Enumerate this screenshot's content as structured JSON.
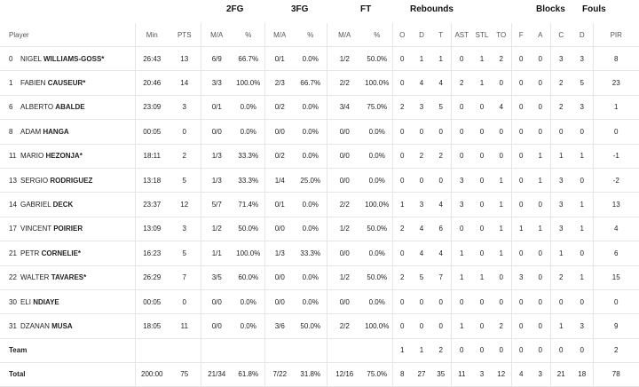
{
  "groups": {
    "fg2": "2FG",
    "fg3": "3FG",
    "ft": "FT",
    "rebounds": "Rebounds",
    "blocks": "Blocks",
    "fouls": "Fouls"
  },
  "headers": {
    "player": "Player",
    "min": "Min",
    "pts": "PTS",
    "fg2_ma": "M/A",
    "fg2_pct": "%",
    "fg3_ma": "M/A",
    "fg3_pct": "%",
    "ft_ma": "M/A",
    "ft_pct": "%",
    "reb_o": "O",
    "reb_d": "D",
    "reb_t": "T",
    "ast": "AST",
    "stl": "STL",
    "to": "TO",
    "blk_f": "F",
    "blk_a": "A",
    "foul_c": "C",
    "foul_d": "D",
    "pir": "PIR"
  },
  "players": [
    {
      "num": "0",
      "first": "NIGEL",
      "last": "WILLIAMS-GOSS*",
      "min": "26:43",
      "pts": "13",
      "fg2_ma": "6/9",
      "fg2_pct": "66.7%",
      "fg3_ma": "0/1",
      "fg3_pct": "0.0%",
      "ft_ma": "1/2",
      "ft_pct": "50.0%",
      "o": "0",
      "d": "1",
      "t": "1",
      "ast": "0",
      "stl": "1",
      "to": "2",
      "bf": "0",
      "ba": "0",
      "fc": "3",
      "fd": "3",
      "pir": "8"
    },
    {
      "num": "1",
      "first": "FABIEN",
      "last": "CAUSEUR*",
      "min": "20:46",
      "pts": "14",
      "fg2_ma": "3/3",
      "fg2_pct": "100.0%",
      "fg3_ma": "2/3",
      "fg3_pct": "66.7%",
      "ft_ma": "2/2",
      "ft_pct": "100.0%",
      "o": "0",
      "d": "4",
      "t": "4",
      "ast": "2",
      "stl": "1",
      "to": "0",
      "bf": "0",
      "ba": "0",
      "fc": "2",
      "fd": "5",
      "pir": "23"
    },
    {
      "num": "6",
      "first": "ALBERTO",
      "last": "ABALDE",
      "min": "23:09",
      "pts": "3",
      "fg2_ma": "0/1",
      "fg2_pct": "0.0%",
      "fg3_ma": "0/2",
      "fg3_pct": "0.0%",
      "ft_ma": "3/4",
      "ft_pct": "75.0%",
      "o": "2",
      "d": "3",
      "t": "5",
      "ast": "0",
      "stl": "0",
      "to": "4",
      "bf": "0",
      "ba": "0",
      "fc": "2",
      "fd": "3",
      "pir": "1"
    },
    {
      "num": "8",
      "first": "ADAM",
      "last": "HANGA",
      "min": "00:05",
      "pts": "0",
      "fg2_ma": "0/0",
      "fg2_pct": "0.0%",
      "fg3_ma": "0/0",
      "fg3_pct": "0.0%",
      "ft_ma": "0/0",
      "ft_pct": "0.0%",
      "o": "0",
      "d": "0",
      "t": "0",
      "ast": "0",
      "stl": "0",
      "to": "0",
      "bf": "0",
      "ba": "0",
      "fc": "0",
      "fd": "0",
      "pir": "0"
    },
    {
      "num": "11",
      "first": "MARIO",
      "last": "HEZONJA*",
      "min": "18:11",
      "pts": "2",
      "fg2_ma": "1/3",
      "fg2_pct": "33.3%",
      "fg3_ma": "0/2",
      "fg3_pct": "0.0%",
      "ft_ma": "0/0",
      "ft_pct": "0.0%",
      "o": "0",
      "d": "2",
      "t": "2",
      "ast": "0",
      "stl": "0",
      "to": "0",
      "bf": "0",
      "ba": "1",
      "fc": "1",
      "fd": "1",
      "pir": "-1"
    },
    {
      "num": "13",
      "first": "SERGIO",
      "last": "RODRIGUEZ",
      "min": "13:18",
      "pts": "5",
      "fg2_ma": "1/3",
      "fg2_pct": "33.3%",
      "fg3_ma": "1/4",
      "fg3_pct": "25.0%",
      "ft_ma": "0/0",
      "ft_pct": "0.0%",
      "o": "0",
      "d": "0",
      "t": "0",
      "ast": "3",
      "stl": "0",
      "to": "1",
      "bf": "0",
      "ba": "1",
      "fc": "3",
      "fd": "0",
      "pir": "-2"
    },
    {
      "num": "14",
      "first": "GABRIEL",
      "last": "DECK",
      "min": "23:37",
      "pts": "12",
      "fg2_ma": "5/7",
      "fg2_pct": "71.4%",
      "fg3_ma": "0/1",
      "fg3_pct": "0.0%",
      "ft_ma": "2/2",
      "ft_pct": "100.0%",
      "o": "1",
      "d": "3",
      "t": "4",
      "ast": "3",
      "stl": "0",
      "to": "1",
      "bf": "0",
      "ba": "0",
      "fc": "3",
      "fd": "1",
      "pir": "13"
    },
    {
      "num": "17",
      "first": "VINCENT",
      "last": "POIRIER",
      "min": "13:09",
      "pts": "3",
      "fg2_ma": "1/2",
      "fg2_pct": "50.0%",
      "fg3_ma": "0/0",
      "fg3_pct": "0.0%",
      "ft_ma": "1/2",
      "ft_pct": "50.0%",
      "o": "2",
      "d": "4",
      "t": "6",
      "ast": "0",
      "stl": "0",
      "to": "1",
      "bf": "1",
      "ba": "1",
      "fc": "3",
      "fd": "1",
      "pir": "4"
    },
    {
      "num": "21",
      "first": "PETR",
      "last": "CORNELIE*",
      "min": "16:23",
      "pts": "5",
      "fg2_ma": "1/1",
      "fg2_pct": "100.0%",
      "fg3_ma": "1/3",
      "fg3_pct": "33.3%",
      "ft_ma": "0/0",
      "ft_pct": "0.0%",
      "o": "0",
      "d": "4",
      "t": "4",
      "ast": "1",
      "stl": "0",
      "to": "1",
      "bf": "0",
      "ba": "0",
      "fc": "1",
      "fd": "0",
      "pir": "6"
    },
    {
      "num": "22",
      "first": "WALTER",
      "last": "TAVARES*",
      "min": "26:29",
      "pts": "7",
      "fg2_ma": "3/5",
      "fg2_pct": "60.0%",
      "fg3_ma": "0/0",
      "fg3_pct": "0.0%",
      "ft_ma": "1/2",
      "ft_pct": "50.0%",
      "o": "2",
      "d": "5",
      "t": "7",
      "ast": "1",
      "stl": "1",
      "to": "0",
      "bf": "3",
      "ba": "0",
      "fc": "2",
      "fd": "1",
      "pir": "15"
    },
    {
      "num": "30",
      "first": "ELI",
      "last": "NDIAYE",
      "min": "00:05",
      "pts": "0",
      "fg2_ma": "0/0",
      "fg2_pct": "0.0%",
      "fg3_ma": "0/0",
      "fg3_pct": "0.0%",
      "ft_ma": "0/0",
      "ft_pct": "0.0%",
      "o": "0",
      "d": "0",
      "t": "0",
      "ast": "0",
      "stl": "0",
      "to": "0",
      "bf": "0",
      "ba": "0",
      "fc": "0",
      "fd": "0",
      "pir": "0"
    },
    {
      "num": "31",
      "first": "DZANAN",
      "last": "MUSA",
      "min": "18:05",
      "pts": "11",
      "fg2_ma": "0/0",
      "fg2_pct": "0.0%",
      "fg3_ma": "3/6",
      "fg3_pct": "50.0%",
      "ft_ma": "2/2",
      "ft_pct": "100.0%",
      "o": "0",
      "d": "0",
      "t": "0",
      "ast": "1",
      "stl": "0",
      "to": "2",
      "bf": "0",
      "ba": "0",
      "fc": "1",
      "fd": "3",
      "pir": "9"
    }
  ],
  "team": {
    "label": "Team",
    "o": "1",
    "d": "1",
    "t": "2",
    "ast": "0",
    "stl": "0",
    "to": "0",
    "bf": "0",
    "ba": "0",
    "fc": "0",
    "fd": "0",
    "pir": "2"
  },
  "total": {
    "label": "Total",
    "min": "200:00",
    "pts": "75",
    "fg2_ma": "21/34",
    "fg2_pct": "61.8%",
    "fg3_ma": "7/22",
    "fg3_pct": "31.8%",
    "ft_ma": "12/16",
    "ft_pct": "75.0%",
    "o": "8",
    "d": "27",
    "t": "35",
    "ast": "11",
    "stl": "3",
    "to": "12",
    "bf": "4",
    "ba": "3",
    "fc": "21",
    "fd": "18",
    "pir": "78"
  }
}
